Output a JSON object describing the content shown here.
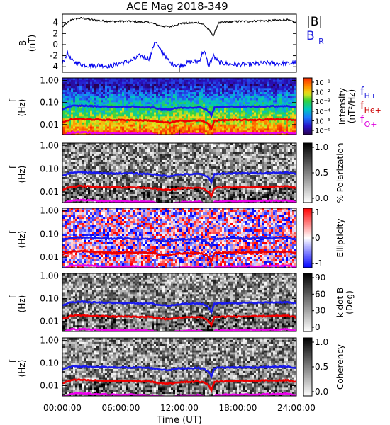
{
  "figure": {
    "title": "ACE Mag 2018-349",
    "xlabel": "Time (UT)",
    "x_ticks": [
      "00:00:00",
      "06:00:00",
      "12:00:00",
      "18:00:00",
      "24:00:00"
    ],
    "legend_top": {
      "b": "|B|",
      "br": "B",
      "br_sub": "R"
    },
    "legend_freq": [
      {
        "main": "f",
        "sub": "H+",
        "color": "#3030dd"
      },
      {
        "main": "f",
        "sub": "He+",
        "color": "#cc0000"
      },
      {
        "main": "f",
        "sub": "O+",
        "color": "#dd00dd"
      }
    ]
  },
  "chart_data": [
    {
      "type": "line",
      "panel": "field",
      "ylabel_main": "B",
      "ylabel_unit": "(nT)",
      "ylim": [
        -5,
        5.5
      ],
      "y_ticks": [
        "4",
        "2",
        "0",
        "-2",
        "-4"
      ],
      "x_unit": "hours UT",
      "series": [
        {
          "name": "|B|",
          "color": "#000000",
          "x": [
            0,
            1,
            2,
            3,
            4,
            5,
            6,
            7,
            8,
            9,
            10,
            11,
            12,
            13,
            14,
            14.5,
            15,
            15.5,
            16,
            17,
            18,
            19,
            20,
            21,
            22,
            23,
            24
          ],
          "y": [
            3.2,
            4.6,
            4.8,
            4.5,
            4.3,
            4.2,
            4.2,
            4.2,
            4.1,
            4.0,
            3.4,
            3.2,
            3.8,
            3.9,
            4.0,
            3.6,
            2.7,
            1.6,
            3.9,
            4.1,
            4.2,
            4.2,
            4.3,
            4.3,
            4.4,
            4.5,
            3.9
          ]
        },
        {
          "name": "B",
          "color": "#0000ee",
          "x": [
            0,
            0.5,
            1,
            1.5,
            2,
            3,
            4,
            5,
            6,
            7,
            8,
            9,
            9.5,
            10,
            10.5,
            11,
            12,
            13,
            14,
            14.5,
            15,
            15.5,
            16,
            17,
            18,
            19,
            20,
            21,
            22,
            23,
            24
          ],
          "y": [
            -3.5,
            -1.5,
            -3.0,
            -3.3,
            -3.6,
            -3.8,
            -3.7,
            -3.9,
            -3.3,
            -3.0,
            -2.0,
            -2.5,
            0.8,
            -1.0,
            -1.8,
            -3.3,
            -3.8,
            -3.2,
            -3.0,
            -1.0,
            -3.8,
            -2.0,
            -3.2,
            -3.5,
            -3.6,
            -3.6,
            -3.5,
            -3.3,
            -3.4,
            -3.5,
            -3.2
          ]
        }
      ]
    },
    {
      "type": "heatmap",
      "panel": "intensity",
      "ylabel_main": "f",
      "ylabel_unit": "(Hz)",
      "y_ticks": [
        "1.00",
        "0.10",
        "0.01"
      ],
      "yscale": "log",
      "colorbar": {
        "label": "Intensity",
        "unit": "(nT²/Hz)",
        "ticks": [
          "10⁻¹",
          "10⁻²",
          "10⁻³",
          "10⁻⁴",
          "10⁻⁵",
          "10⁻⁶"
        ],
        "colors": [
          "#ffffff",
          "#ff2a00",
          "#ff9900",
          "#f0e020",
          "#40d040",
          "#00c8c0",
          "#2080ff",
          "#1010c0",
          "#400070",
          "#000000"
        ]
      }
    },
    {
      "type": "heatmap",
      "panel": "polarization",
      "ylabel_main": "f",
      "ylabel_unit": "(Hz)",
      "y_ticks": [
        "1.00",
        "0.10",
        "0.01"
      ],
      "yscale": "log",
      "colorbar": {
        "label": "% Polarization",
        "unit": "",
        "ticks": [
          "1.0",
          "0.5",
          "0.0"
        ],
        "colors": [
          "#000000",
          "#ffffff"
        ]
      }
    },
    {
      "type": "heatmap",
      "panel": "ellipticity",
      "ylabel_main": "f",
      "ylabel_unit": "(Hz)",
      "y_ticks": [
        "1.00",
        "0.10",
        "0.01"
      ],
      "yscale": "log",
      "colorbar": {
        "label": "Ellipticity",
        "unit": "",
        "ticks": [
          "1",
          "0",
          "-1"
        ],
        "colors": [
          "#ff0000",
          "#ffffff",
          "#0000ff"
        ]
      }
    },
    {
      "type": "heatmap",
      "panel": "kdotb",
      "ylabel_main": "f",
      "ylabel_unit": "(Hz)",
      "y_ticks": [
        "1.00",
        "0.10",
        "0.01"
      ],
      "yscale": "log",
      "colorbar": {
        "label": "k dot B",
        "unit": "(Deg)",
        "ticks": [
          "90",
          "60",
          "30",
          "0"
        ],
        "colors": [
          "#000000",
          "#ffffff"
        ]
      }
    },
    {
      "type": "heatmap",
      "panel": "coherency",
      "ylabel_main": "f",
      "ylabel_unit": "(Hz)",
      "y_ticks": [
        "1.00",
        "0.10",
        "0.01"
      ],
      "yscale": "log",
      "colorbar": {
        "label": "Coherency",
        "unit": "",
        "ticks": [
          "1.0",
          "0.5",
          "0.0"
        ],
        "colors": [
          "#000000",
          "#ffffff"
        ]
      }
    }
  ],
  "cyclotron_lines": {
    "x_unit": "hours UT",
    "x": [
      0,
      1,
      2,
      3,
      4,
      5,
      6,
      7,
      8,
      9,
      10,
      11,
      12,
      13,
      14,
      14.5,
      15,
      15.3,
      15.6,
      16,
      17,
      18,
      19,
      20,
      21,
      22,
      23,
      24
    ],
    "fH": [
      0.05,
      0.07,
      0.072,
      0.068,
      0.066,
      0.064,
      0.064,
      0.064,
      0.062,
      0.061,
      0.052,
      0.049,
      0.058,
      0.059,
      0.061,
      0.055,
      0.041,
      0.024,
      0.06,
      0.062,
      0.064,
      0.064,
      0.065,
      0.065,
      0.067,
      0.068,
      0.069,
      0.06
    ],
    "fHe_ratio": 0.25,
    "fO_ratio": 0.0625,
    "colors": {
      "fH": "#1a1aee",
      "fHe": "#ee0000",
      "fO": "#ee00ee"
    }
  }
}
